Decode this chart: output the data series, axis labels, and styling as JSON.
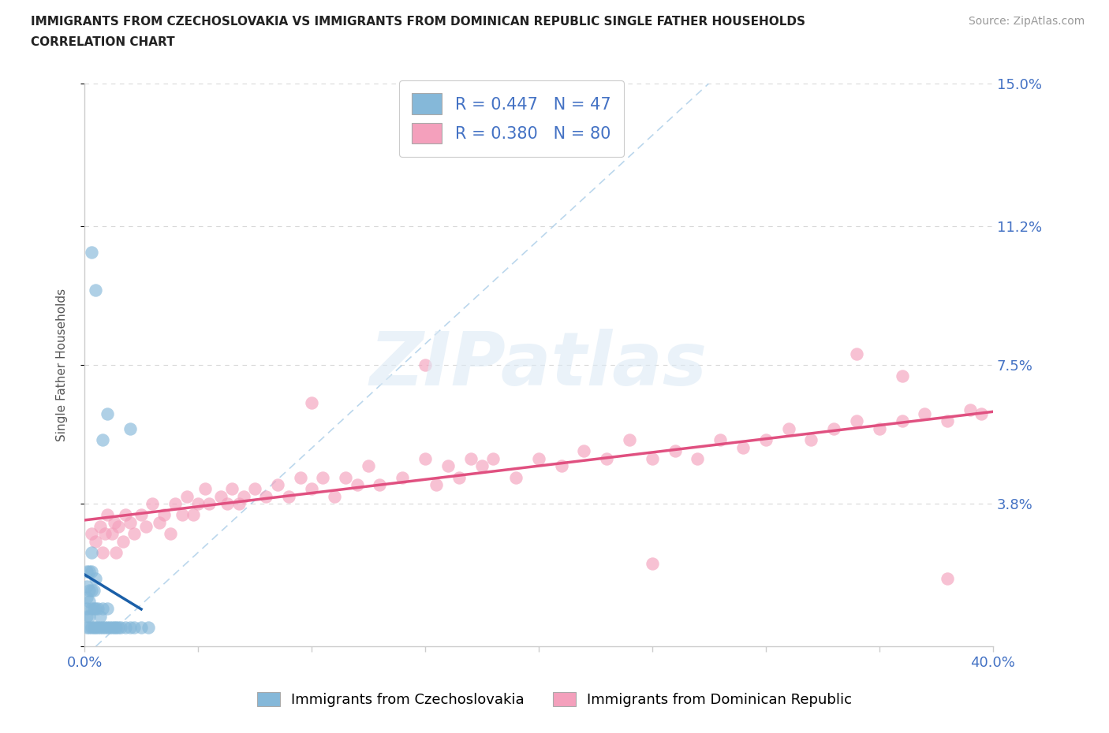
{
  "title_line1": "IMMIGRANTS FROM CZECHOSLOVAKIA VS IMMIGRANTS FROM DOMINICAN REPUBLIC SINGLE FATHER HOUSEHOLDS",
  "title_line2": "CORRELATION CHART",
  "source_text": "Source: ZipAtlas.com",
  "ylabel": "Single Father Households",
  "xlim": [
    0.0,
    0.4
  ],
  "ylim": [
    0.0,
    0.15
  ],
  "xticks": [
    0.0,
    0.05,
    0.1,
    0.15,
    0.2,
    0.25,
    0.3,
    0.35,
    0.4
  ],
  "xticklabels": [
    "0.0%",
    "",
    "",
    "",
    "",
    "",
    "",
    "",
    "40.0%"
  ],
  "ytick_positions": [
    0.0,
    0.038,
    0.075,
    0.112,
    0.15
  ],
  "ytick_labels": [
    "",
    "3.8%",
    "7.5%",
    "11.2%",
    "15.0%"
  ],
  "legend_R1": "0.447",
  "legend_N1": "47",
  "legend_R2": "0.380",
  "legend_N2": "80",
  "color_czech": "#85b8d9",
  "color_dr": "#f4a0bc",
  "color_czech_line": "#1a5fa8",
  "color_dr_line": "#e05080",
  "color_dashed": "#aacde8",
  "tick_color": "#4472c4",
  "watermark_color": "#d8e8f0",
  "watermark": "ZIPatlas",
  "background_color": "#ffffff",
  "grid_color": "#d8d8d8",
  "title_color": "#222222",
  "czech_x": [
    0.001,
    0.001,
    0.001,
    0.001,
    0.001,
    0.001,
    0.002,
    0.002,
    0.002,
    0.002,
    0.002,
    0.003,
    0.003,
    0.003,
    0.003,
    0.003,
    0.004,
    0.004,
    0.004,
    0.005,
    0.005,
    0.005,
    0.006,
    0.006,
    0.007,
    0.007,
    0.008,
    0.008,
    0.009,
    0.01,
    0.01,
    0.011,
    0.012,
    0.013,
    0.014,
    0.015,
    0.016,
    0.018,
    0.02,
    0.022,
    0.025,
    0.028,
    0.008,
    0.01,
    0.02,
    0.005,
    0.003
  ],
  "czech_y": [
    0.005,
    0.008,
    0.01,
    0.013,
    0.016,
    0.02,
    0.005,
    0.008,
    0.012,
    0.015,
    0.02,
    0.005,
    0.01,
    0.015,
    0.02,
    0.025,
    0.005,
    0.01,
    0.015,
    0.005,
    0.01,
    0.018,
    0.005,
    0.01,
    0.005,
    0.008,
    0.005,
    0.01,
    0.005,
    0.005,
    0.01,
    0.005,
    0.005,
    0.005,
    0.005,
    0.005,
    0.005,
    0.005,
    0.005,
    0.005,
    0.005,
    0.005,
    0.055,
    0.062,
    0.058,
    0.095,
    0.105
  ],
  "dr_x": [
    0.003,
    0.005,
    0.007,
    0.008,
    0.009,
    0.01,
    0.012,
    0.013,
    0.014,
    0.015,
    0.017,
    0.018,
    0.02,
    0.022,
    0.025,
    0.027,
    0.03,
    0.033,
    0.035,
    0.038,
    0.04,
    0.043,
    0.045,
    0.048,
    0.05,
    0.053,
    0.055,
    0.06,
    0.063,
    0.065,
    0.068,
    0.07,
    0.075,
    0.08,
    0.085,
    0.09,
    0.095,
    0.1,
    0.105,
    0.11,
    0.115,
    0.12,
    0.125,
    0.13,
    0.14,
    0.15,
    0.155,
    0.16,
    0.165,
    0.17,
    0.175,
    0.18,
    0.19,
    0.2,
    0.21,
    0.22,
    0.23,
    0.24,
    0.25,
    0.26,
    0.27,
    0.28,
    0.29,
    0.3,
    0.31,
    0.32,
    0.33,
    0.34,
    0.35,
    0.36,
    0.37,
    0.38,
    0.39,
    0.395,
    0.34,
    0.36,
    0.38,
    0.1,
    0.25,
    0.15
  ],
  "dr_y": [
    0.03,
    0.028,
    0.032,
    0.025,
    0.03,
    0.035,
    0.03,
    0.033,
    0.025,
    0.032,
    0.028,
    0.035,
    0.033,
    0.03,
    0.035,
    0.032,
    0.038,
    0.033,
    0.035,
    0.03,
    0.038,
    0.035,
    0.04,
    0.035,
    0.038,
    0.042,
    0.038,
    0.04,
    0.038,
    0.042,
    0.038,
    0.04,
    0.042,
    0.04,
    0.043,
    0.04,
    0.045,
    0.042,
    0.045,
    0.04,
    0.045,
    0.043,
    0.048,
    0.043,
    0.045,
    0.05,
    0.043,
    0.048,
    0.045,
    0.05,
    0.048,
    0.05,
    0.045,
    0.05,
    0.048,
    0.052,
    0.05,
    0.055,
    0.05,
    0.052,
    0.05,
    0.055,
    0.053,
    0.055,
    0.058,
    0.055,
    0.058,
    0.06,
    0.058,
    0.06,
    0.062,
    0.06,
    0.063,
    0.062,
    0.078,
    0.072,
    0.018,
    0.065,
    0.022,
    0.075
  ]
}
